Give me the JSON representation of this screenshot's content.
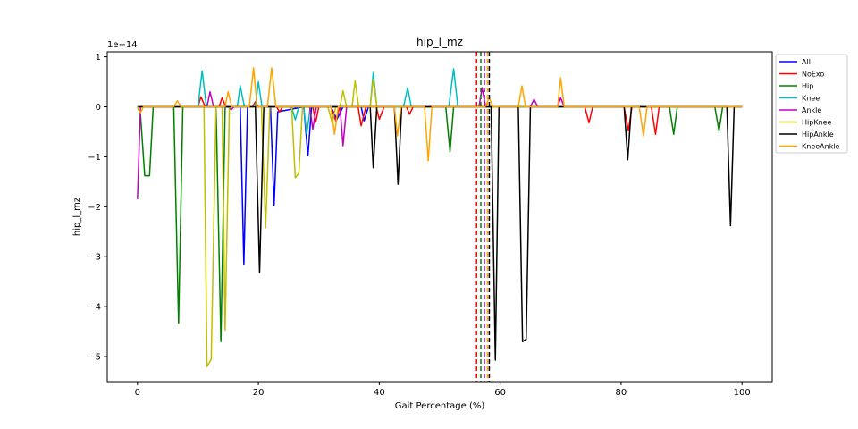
{
  "chart_data": {
    "type": "line",
    "title": "hip_l_mz",
    "xlabel": "Gait Percentage (%)",
    "ylabel": "hip_l_mz",
    "y_scale_label": "1e−14",
    "xlim": [
      -5,
      105
    ],
    "ylim": [
      -5.5,
      1.1
    ],
    "x_ticks": [
      0,
      20,
      40,
      60,
      80,
      100
    ],
    "x_tick_labels": [
      "0",
      "20",
      "40",
      "60",
      "80",
      "100"
    ],
    "y_ticks": [
      1,
      0,
      -1,
      -2,
      -3,
      -4,
      -5
    ],
    "y_tick_labels": [
      "1",
      "0",
      "−1",
      "−2",
      "−3",
      "−4",
      "−5"
    ],
    "grid": false,
    "legend_position": "outside-top-right",
    "series": [
      {
        "name": "All",
        "color": "#0000ff",
        "points": [
          [
            0,
            0
          ],
          [
            17,
            0
          ],
          [
            17.6,
            -3.15
          ],
          [
            18.2,
            0
          ],
          [
            22,
            0
          ],
          [
            22.6,
            -1.98
          ],
          [
            23.2,
            -0.1
          ],
          [
            27.5,
            0
          ],
          [
            28.2,
            -0.98
          ],
          [
            28.8,
            0
          ],
          [
            32,
            0
          ],
          [
            33,
            -0.25
          ],
          [
            34,
            0
          ],
          [
            37,
            0
          ],
          [
            37.5,
            -0.28
          ],
          [
            38.2,
            0
          ],
          [
            100,
            0
          ]
        ]
      },
      {
        "name": "NoExo",
        "color": "#ff0000",
        "points": [
          [
            0,
            0
          ],
          [
            10,
            0
          ],
          [
            10.5,
            0.2
          ],
          [
            11.2,
            0
          ],
          [
            13.5,
            0
          ],
          [
            14,
            0.18
          ],
          [
            14.6,
            0
          ],
          [
            19,
            0
          ],
          [
            19.5,
            0.1
          ],
          [
            20,
            0
          ],
          [
            23,
            0
          ],
          [
            23.5,
            -0.1
          ],
          [
            24,
            0
          ],
          [
            29,
            0
          ],
          [
            29.5,
            -0.3
          ],
          [
            30,
            0
          ],
          [
            32,
            0
          ],
          [
            32.8,
            -0.28
          ],
          [
            33.5,
            0
          ],
          [
            36.5,
            0
          ],
          [
            37,
            -0.38
          ],
          [
            37.8,
            0
          ],
          [
            39.5,
            0
          ],
          [
            40,
            -0.25
          ],
          [
            40.8,
            0
          ],
          [
            44.5,
            0
          ],
          [
            45,
            -0.15
          ],
          [
            45.6,
            0
          ],
          [
            74,
            0
          ],
          [
            74.7,
            -0.32
          ],
          [
            75.3,
            0
          ],
          [
            80.5,
            0
          ],
          [
            81.2,
            -0.48
          ],
          [
            81.8,
            0
          ],
          [
            85,
            0
          ],
          [
            85.7,
            -0.55
          ],
          [
            86.3,
            0
          ],
          [
            100,
            0
          ]
        ]
      },
      {
        "name": "Hip",
        "color": "#008000",
        "points": [
          [
            0,
            0
          ],
          [
            0.5,
            -0.15
          ],
          [
            1.2,
            -1.38
          ],
          [
            2,
            -1.38
          ],
          [
            2.6,
            0
          ],
          [
            6,
            0
          ],
          [
            6.8,
            -4.33
          ],
          [
            7.5,
            0
          ],
          [
            13,
            0
          ],
          [
            13.8,
            -4.7
          ],
          [
            14.5,
            0
          ],
          [
            51,
            0
          ],
          [
            51.7,
            -0.9
          ],
          [
            52.3,
            0
          ],
          [
            88,
            0
          ],
          [
            88.7,
            -0.55
          ],
          [
            89.3,
            0
          ],
          [
            95.5,
            0
          ],
          [
            96.2,
            -0.48
          ],
          [
            96.8,
            0
          ],
          [
            100,
            0
          ]
        ]
      },
      {
        "name": "Knee",
        "color": "#00bfbf",
        "points": [
          [
            0,
            0
          ],
          [
            10,
            0
          ],
          [
            10.7,
            0.72
          ],
          [
            11.4,
            0
          ],
          [
            16.5,
            0
          ],
          [
            17,
            0.42
          ],
          [
            17.7,
            0
          ],
          [
            19.5,
            0
          ],
          [
            20,
            0.5
          ],
          [
            20.6,
            0
          ],
          [
            25.5,
            0
          ],
          [
            26.1,
            -0.26
          ],
          [
            26.7,
            0
          ],
          [
            27.5,
            0
          ],
          [
            28,
            -0.55
          ],
          [
            28.6,
            0
          ],
          [
            38.5,
            0
          ],
          [
            39,
            0.68
          ],
          [
            39.6,
            0
          ],
          [
            44,
            0
          ],
          [
            44.7,
            0.38
          ],
          [
            45.3,
            0
          ],
          [
            51.5,
            0
          ],
          [
            52.3,
            0.76
          ],
          [
            53,
            0
          ],
          [
            100,
            0
          ]
        ]
      },
      {
        "name": "Ankle",
        "color": "#bf00bf",
        "points": [
          [
            0,
            -1.85
          ],
          [
            0.5,
            0
          ],
          [
            11.5,
            0
          ],
          [
            12,
            0.3
          ],
          [
            12.6,
            0
          ],
          [
            15,
            0
          ],
          [
            15.5,
            -0.06
          ],
          [
            16,
            0
          ],
          [
            28.5,
            0
          ],
          [
            29,
            -0.45
          ],
          [
            29.6,
            0
          ],
          [
            33.5,
            0
          ],
          [
            34,
            -0.78
          ],
          [
            34.6,
            0
          ],
          [
            56.5,
            0
          ],
          [
            57,
            0.38
          ],
          [
            57.6,
            0
          ],
          [
            65,
            0
          ],
          [
            65.6,
            0.15
          ],
          [
            66.2,
            0
          ],
          [
            69.5,
            0
          ],
          [
            70,
            0.18
          ],
          [
            70.6,
            0
          ],
          [
            100,
            0
          ]
        ]
      },
      {
        "name": "HipKnee",
        "color": "#bfbf00",
        "points": [
          [
            0,
            0
          ],
          [
            11,
            0
          ],
          [
            11.5,
            -5.2
          ],
          [
            12.2,
            -5.05
          ],
          [
            13,
            0
          ],
          [
            14,
            0
          ],
          [
            14.5,
            -4.47
          ],
          [
            15.2,
            0
          ],
          [
            20.5,
            0
          ],
          [
            21.2,
            -2.42
          ],
          [
            21.9,
            0
          ],
          [
            25.5,
            0
          ],
          [
            26.1,
            -1.42
          ],
          [
            26.7,
            -1.33
          ],
          [
            27.3,
            0
          ],
          [
            31.5,
            0
          ],
          [
            32.2,
            -0.32
          ],
          [
            32.8,
            0
          ],
          [
            33.5,
            0
          ],
          [
            34,
            0.32
          ],
          [
            34.6,
            0
          ],
          [
            35.5,
            0
          ],
          [
            36,
            0.52
          ],
          [
            36.6,
            0
          ],
          [
            38.5,
            0
          ],
          [
            39,
            0.55
          ],
          [
            39.6,
            0
          ],
          [
            100,
            0
          ]
        ]
      },
      {
        "name": "HipAnkle",
        "color": "#000000",
        "points": [
          [
            0,
            0
          ],
          [
            19.5,
            0
          ],
          [
            20.2,
            -3.32
          ],
          [
            20.9,
            0
          ],
          [
            38.5,
            0
          ],
          [
            39,
            -1.22
          ],
          [
            39.6,
            0
          ],
          [
            42.5,
            0
          ],
          [
            43.1,
            -1.55
          ],
          [
            43.7,
            0
          ],
          [
            58.5,
            0
          ],
          [
            59.2,
            -5.07
          ],
          [
            59.8,
            0
          ],
          [
            63,
            0
          ],
          [
            63.7,
            -4.7
          ],
          [
            64.3,
            -4.65
          ],
          [
            65,
            0
          ],
          [
            80.5,
            0
          ],
          [
            81.1,
            -1.06
          ],
          [
            81.7,
            0
          ],
          [
            97.5,
            0
          ],
          [
            98.1,
            -2.38
          ],
          [
            98.7,
            0
          ],
          [
            100,
            0
          ]
        ]
      },
      {
        "name": "KneeAnkle",
        "color": "#ffa500",
        "points": [
          [
            0,
            0
          ],
          [
            0.5,
            -0.12
          ],
          [
            1,
            0
          ],
          [
            6,
            0
          ],
          [
            6.6,
            0.12
          ],
          [
            7.2,
            0
          ],
          [
            14.5,
            0
          ],
          [
            15,
            0.3
          ],
          [
            15.6,
            0
          ],
          [
            18.5,
            0
          ],
          [
            19.2,
            0.78
          ],
          [
            19.8,
            0
          ],
          [
            21.5,
            0
          ],
          [
            22.2,
            0.78
          ],
          [
            22.9,
            0
          ],
          [
            32,
            0
          ],
          [
            32.6,
            -0.55
          ],
          [
            33.2,
            0
          ],
          [
            42.5,
            0
          ],
          [
            43,
            -0.58
          ],
          [
            43.6,
            0
          ],
          [
            47.5,
            0
          ],
          [
            48.1,
            -1.08
          ],
          [
            48.7,
            0
          ],
          [
            57.5,
            0
          ],
          [
            58.2,
            0.18
          ],
          [
            58.8,
            0
          ],
          [
            63,
            0
          ],
          [
            63.6,
            0.42
          ],
          [
            64.2,
            0
          ],
          [
            69.5,
            0
          ],
          [
            70,
            0.58
          ],
          [
            70.6,
            0
          ],
          [
            83,
            0
          ],
          [
            83.7,
            -0.58
          ],
          [
            84.3,
            0
          ],
          [
            100,
            0
          ]
        ]
      }
    ],
    "vlines": [
      {
        "x": 56.1,
        "color": "#ff0000"
      },
      {
        "x": 56.8,
        "color": "#008000"
      },
      {
        "x": 57.4,
        "color": "#bf00bf"
      },
      {
        "x": 57.9,
        "color": "#ffa500"
      },
      {
        "x": 58.2,
        "color": "#000000"
      }
    ]
  }
}
